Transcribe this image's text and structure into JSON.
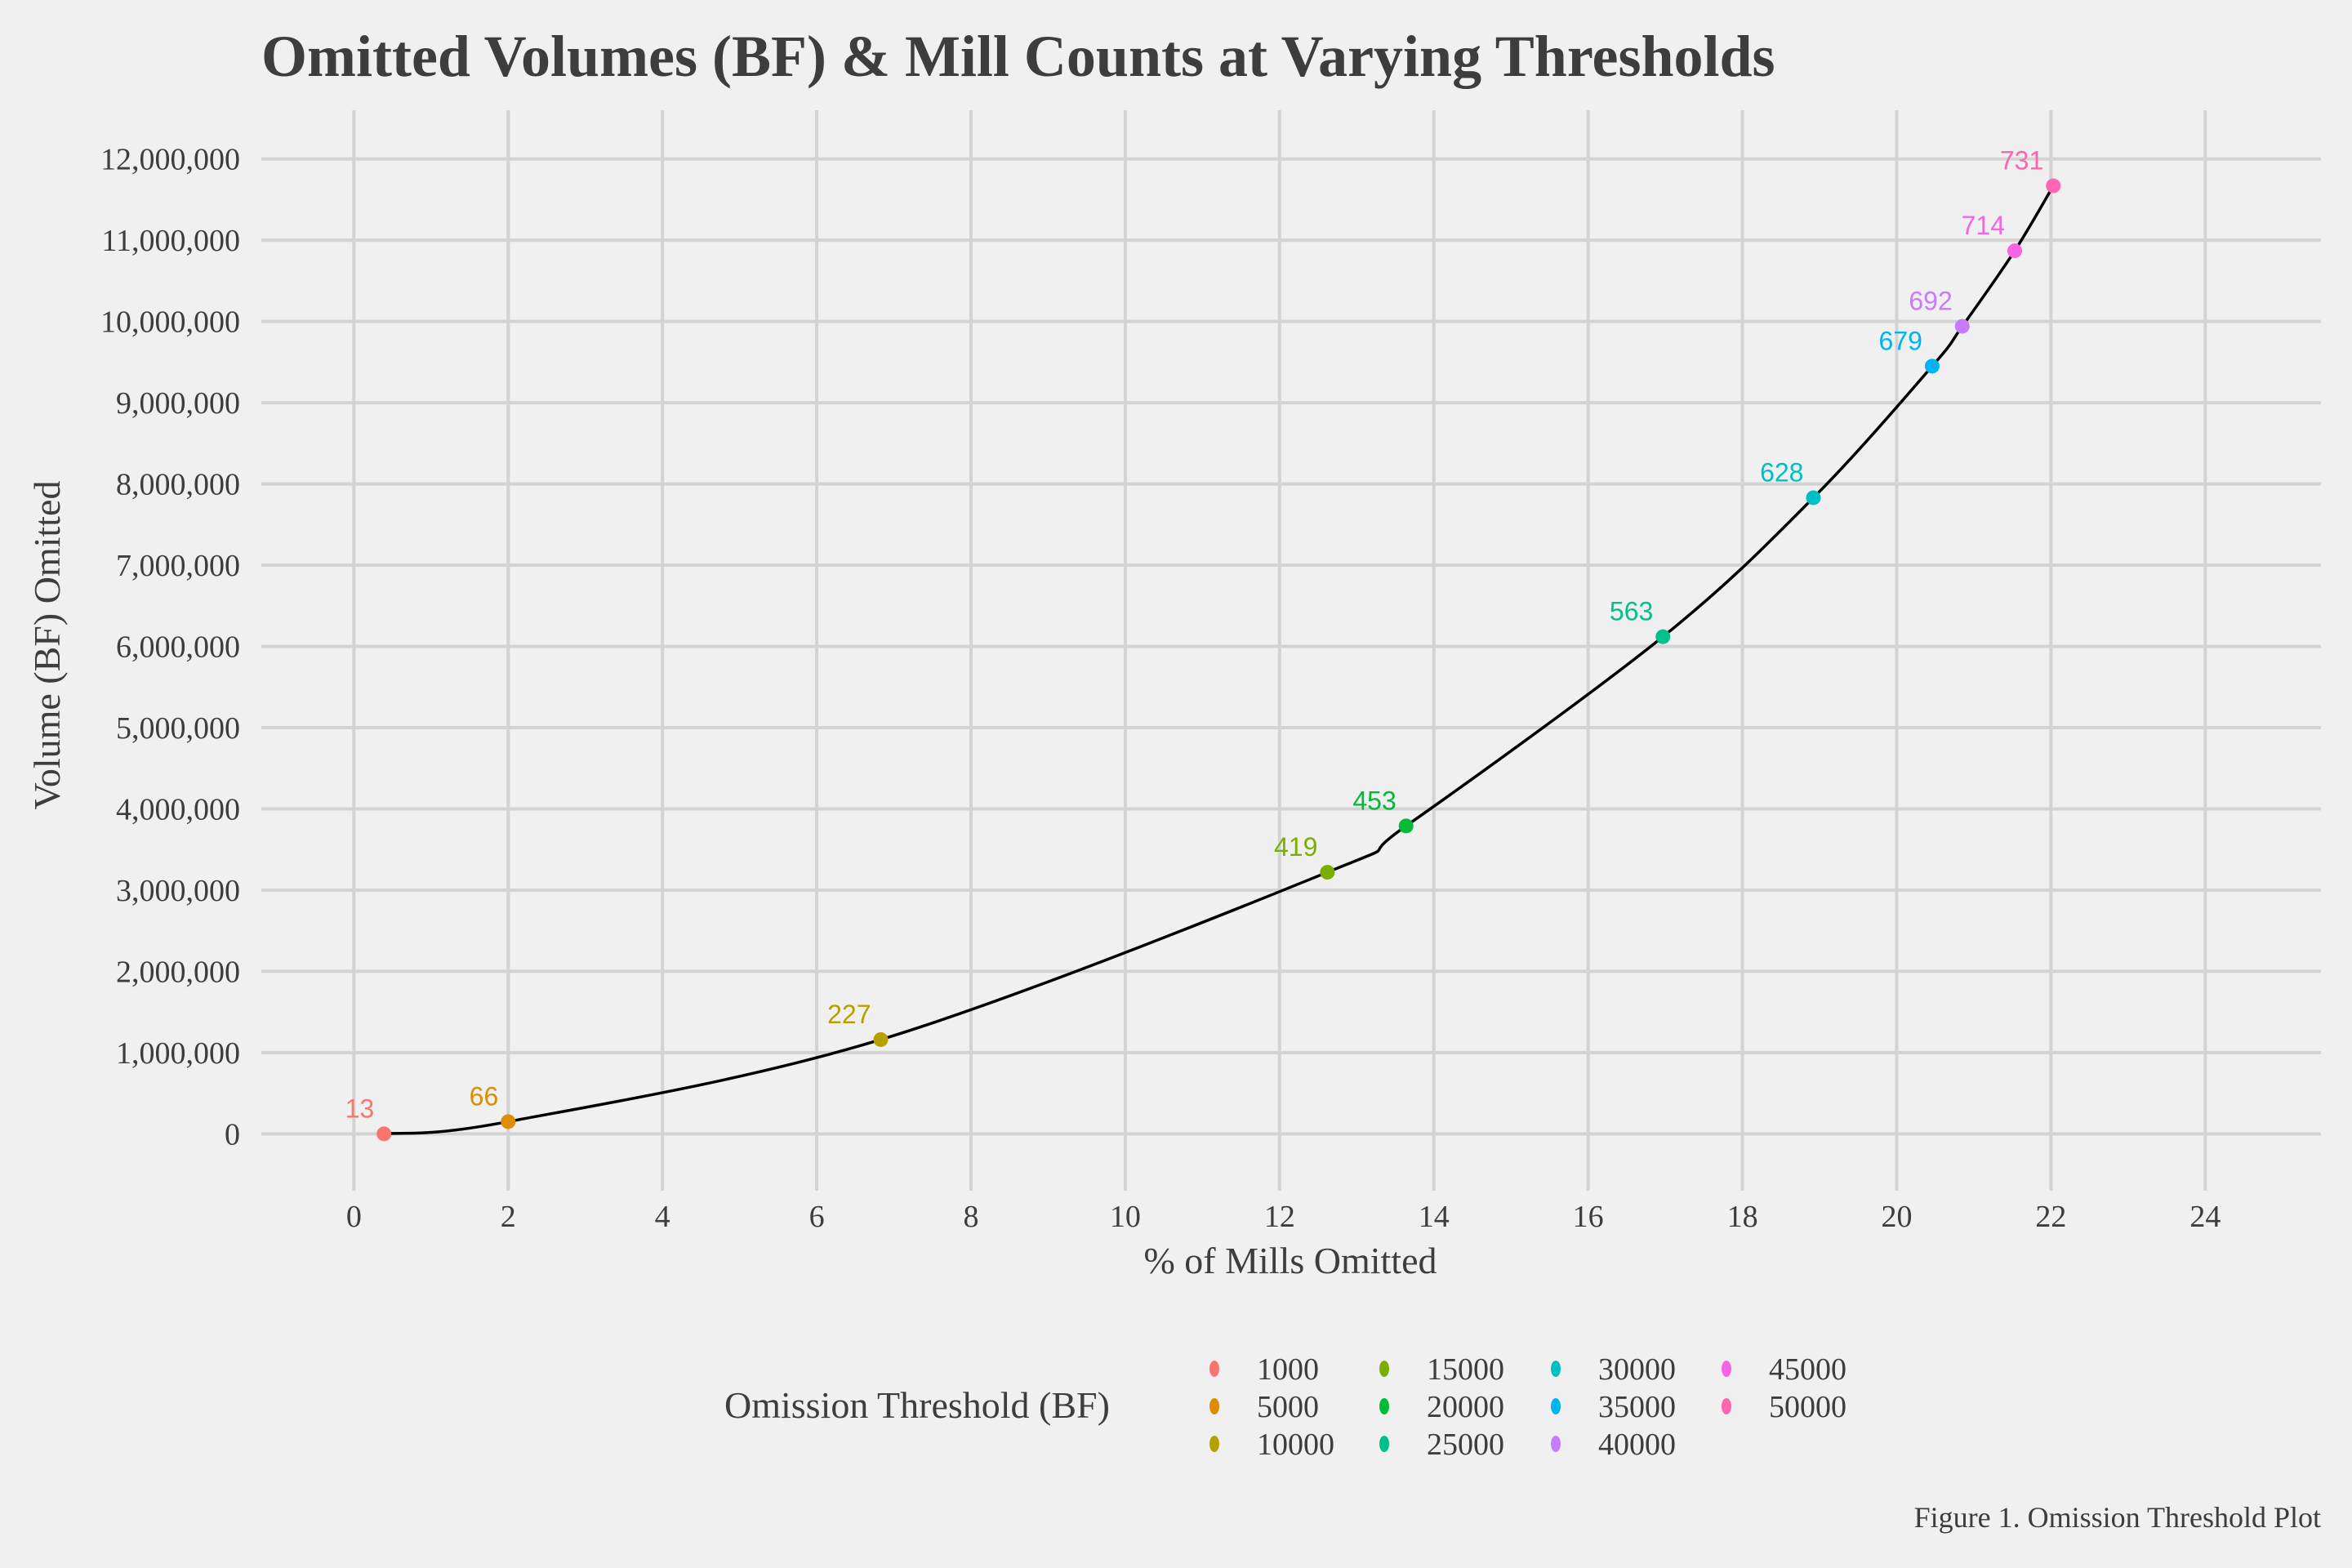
{
  "chart_data": {
    "type": "scatter",
    "title": "Omitted Volumes (BF) & Mill Counts at Varying Thresholds",
    "xlabel": "% of Mills Omitted",
    "ylabel": "Volume (BF) Omitted",
    "xlim": [
      -1.2,
      25.5
    ],
    "ylim": [
      -700000,
      12600000
    ],
    "x_ticks": [
      0,
      2,
      4,
      6,
      8,
      10,
      12,
      14,
      16,
      18,
      20,
      22,
      24
    ],
    "x_tick_labels": [
      "0",
      "2",
      "4",
      "6",
      "8",
      "10",
      "12",
      "14",
      "16",
      "18",
      "20",
      "22",
      "24"
    ],
    "y_ticks": [
      0,
      1000000,
      2000000,
      3000000,
      4000000,
      5000000,
      6000000,
      7000000,
      8000000,
      9000000,
      10000000,
      11000000,
      12000000
    ],
    "y_tick_labels": [
      "0",
      "1,000,000",
      "2,000,000",
      "3,000,000",
      "4,000,000",
      "5,000,000",
      "6,000,000",
      "7,000,000",
      "8,000,000",
      "9,000,000",
      "10,000,000",
      "11,000,000",
      "12,000,000"
    ],
    "grid": true,
    "legend": {
      "title": "Omission Threshold (BF)",
      "placement": "bottom"
    },
    "series": [
      {
        "name": "1000",
        "x": 0.39,
        "y": 0,
        "label": "13",
        "color": "#F8766D"
      },
      {
        "name": "5000",
        "x": 2.0,
        "y": 150000,
        "label": "66",
        "color": "#DE8C00"
      },
      {
        "name": "10000",
        "x": 6.83,
        "y": 1160000,
        "label": "227",
        "color": "#B79F00"
      },
      {
        "name": "15000",
        "x": 12.62,
        "y": 3220000,
        "label": "419",
        "color": "#7CAE00"
      },
      {
        "name": "20000",
        "x": 13.64,
        "y": 3790000,
        "label": "453",
        "color": "#00BA38"
      },
      {
        "name": "25000",
        "x": 16.97,
        "y": 6120000,
        "label": "563",
        "color": "#00C08B"
      },
      {
        "name": "30000",
        "x": 18.92,
        "y": 7830000,
        "label": "628",
        "color": "#00BFC4"
      },
      {
        "name": "35000",
        "x": 20.46,
        "y": 9450000,
        "label": "679",
        "color": "#00B4F0"
      },
      {
        "name": "40000",
        "x": 20.85,
        "y": 9940000,
        "label": "692",
        "color": "#C77CFF"
      },
      {
        "name": "45000",
        "x": 21.53,
        "y": 10870000,
        "label": "714",
        "color": "#F564E3"
      },
      {
        "name": "50000",
        "x": 22.03,
        "y": 11670000,
        "label": "731",
        "color": "#FF64B0"
      }
    ],
    "trend_line": {
      "type": "smooth",
      "color": "#000000"
    }
  },
  "caption": "Figure 1. Omission Threshold Plot"
}
